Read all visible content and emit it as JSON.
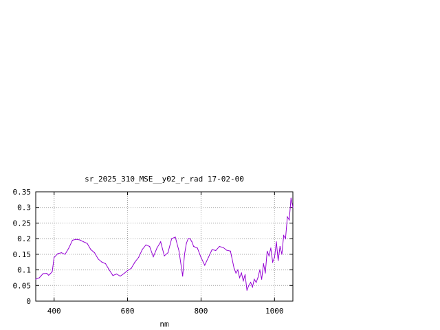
{
  "chart_data": {
    "type": "line",
    "title": "sr_2025_310_MSE__y02_r_rad 17-02-00",
    "xlabel": "nm",
    "ylabel": "",
    "xlim": [
      350,
      1050
    ],
    "ylim": [
      0,
      0.35
    ],
    "x_ticks": [
      400,
      600,
      800,
      1000
    ],
    "y_ticks": [
      0,
      0.05,
      0.1,
      0.15,
      0.2,
      0.25,
      0.3,
      0.35
    ],
    "y_tick_labels": [
      "0",
      "0.05",
      "0.1",
      "0.15",
      "0.2",
      "0.25",
      "0.3",
      "0.35"
    ],
    "grid": true,
    "line_color": "#9400d3",
    "series": [
      {
        "x": [
          350,
          360,
          370,
          380,
          385,
          390,
          395,
          400,
          410,
          420,
          430,
          440,
          450,
          460,
          470,
          480,
          490,
          500,
          510,
          520,
          530,
          540,
          550,
          560,
          570,
          580,
          590,
          600,
          610,
          620,
          630,
          640,
          650,
          660,
          670,
          680,
          690,
          700,
          710,
          720,
          730,
          740,
          750,
          755,
          760,
          765,
          770,
          775,
          780,
          790,
          800,
          810,
          820,
          830,
          840,
          850,
          860,
          870,
          880,
          890,
          895,
          900,
          905,
          910,
          915,
          920,
          925,
          930,
          935,
          940,
          945,
          950,
          955,
          960,
          965,
          970,
          975,
          980,
          985,
          990,
          995,
          1000,
          1005,
          1010,
          1015,
          1020,
          1025,
          1030,
          1035,
          1040,
          1045,
          1050
        ],
        "y": [
          0.07,
          0.075,
          0.088,
          0.089,
          0.083,
          0.088,
          0.095,
          0.14,
          0.152,
          0.155,
          0.15,
          0.17,
          0.195,
          0.198,
          0.196,
          0.19,
          0.185,
          0.165,
          0.155,
          0.135,
          0.125,
          0.12,
          0.1,
          0.082,
          0.087,
          0.08,
          0.088,
          0.098,
          0.105,
          0.125,
          0.14,
          0.165,
          0.18,
          0.175,
          0.142,
          0.17,
          0.19,
          0.145,
          0.155,
          0.2,
          0.205,
          0.16,
          0.08,
          0.15,
          0.185,
          0.2,
          0.2,
          0.19,
          0.175,
          0.17,
          0.14,
          0.115,
          0.14,
          0.165,
          0.162,
          0.175,
          0.172,
          0.163,
          0.16,
          0.105,
          0.09,
          0.1,
          0.075,
          0.09,
          0.065,
          0.085,
          0.035,
          0.05,
          0.06,
          0.045,
          0.07,
          0.06,
          0.075,
          0.1,
          0.07,
          0.12,
          0.09,
          0.16,
          0.145,
          0.17,
          0.125,
          0.14,
          0.19,
          0.13,
          0.175,
          0.15,
          0.21,
          0.2,
          0.27,
          0.26,
          0.33,
          0.3
        ]
      }
    ]
  }
}
